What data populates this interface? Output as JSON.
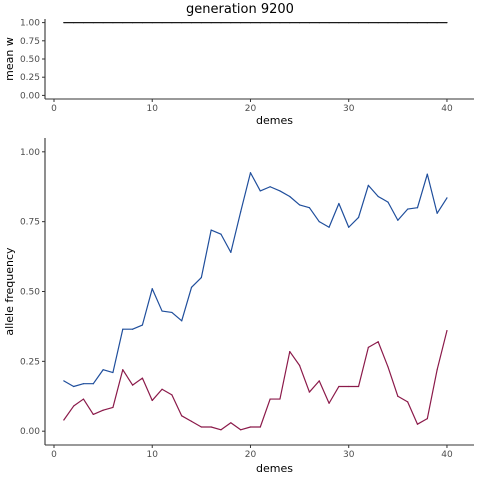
{
  "chart_data": [
    {
      "type": "line",
      "title": "generation 9200",
      "xlabel": "demes",
      "ylabel": "mean w",
      "xlim": [
        0,
        41
      ],
      "ylim": [
        0,
        1
      ],
      "x_ticks": [
        "0",
        "10",
        "20",
        "30",
        "40"
      ],
      "y_ticks": [
        "0.00",
        "0.25",
        "0.50",
        "0.75",
        "1.00"
      ],
      "grid": false,
      "series": [
        {
          "color": "#1a1a1a",
          "x": [
            1,
            2,
            3,
            4,
            5,
            6,
            7,
            8,
            9,
            10,
            11,
            12,
            13,
            14,
            15,
            16,
            17,
            18,
            19,
            20,
            21,
            22,
            23,
            24,
            25,
            26,
            27,
            28,
            29,
            30,
            31,
            32,
            33,
            34,
            35,
            36,
            37,
            38,
            39,
            40
          ],
          "values": [
            1,
            1,
            1,
            1,
            1,
            1,
            1,
            1,
            1,
            1,
            1,
            1,
            1,
            1,
            1,
            1,
            1,
            1,
            1,
            1,
            1,
            1,
            1,
            1,
            1,
            1,
            1,
            1,
            1,
            1,
            1,
            1,
            1,
            1,
            1,
            1,
            1,
            1,
            1,
            1
          ]
        }
      ]
    },
    {
      "type": "line",
      "title": "",
      "xlabel": "demes",
      "ylabel": "allele frequency",
      "xlim": [
        0,
        41
      ],
      "ylim": [
        0,
        1
      ],
      "x_ticks": [
        "0",
        "10",
        "20",
        "30",
        "40"
      ],
      "y_ticks": [
        "0.00",
        "0.25",
        "0.50",
        "0.75",
        "1.00"
      ],
      "grid": false,
      "series": [
        {
          "color": "#1f4e9c",
          "x": [
            1,
            2,
            3,
            4,
            5,
            6,
            7,
            8,
            9,
            10,
            11,
            12,
            13,
            14,
            15,
            16,
            17,
            18,
            19,
            20,
            21,
            22,
            23,
            24,
            25,
            26,
            27,
            28,
            29,
            30,
            31,
            32,
            33,
            34,
            35,
            36,
            37,
            38,
            39,
            40
          ],
          "values": [
            0.18,
            0.16,
            0.17,
            0.17,
            0.22,
            0.21,
            0.365,
            0.365,
            0.38,
            0.51,
            0.43,
            0.425,
            0.395,
            0.515,
            0.55,
            0.72,
            0.705,
            0.64,
            0.785,
            0.925,
            0.86,
            0.875,
            0.86,
            0.84,
            0.81,
            0.8,
            0.75,
            0.73,
            0.815,
            0.73,
            0.765,
            0.88,
            0.84,
            0.82,
            0.755,
            0.795,
            0.8,
            0.92,
            0.78,
            0.835
          ]
        },
        {
          "color": "#8b1a4a",
          "x": [
            1,
            2,
            3,
            4,
            5,
            6,
            7,
            8,
            9,
            10,
            11,
            12,
            13,
            14,
            15,
            16,
            17,
            18,
            19,
            20,
            21,
            22,
            23,
            24,
            25,
            26,
            27,
            28,
            29,
            30,
            31,
            32,
            33,
            34,
            35,
            36,
            37,
            38,
            39,
            40
          ],
          "values": [
            0.04,
            0.09,
            0.115,
            0.06,
            0.075,
            0.085,
            0.22,
            0.165,
            0.19,
            0.11,
            0.15,
            0.13,
            0.055,
            0.035,
            0.015,
            0.015,
            0.005,
            0.03,
            0.005,
            0.015,
            0.015,
            0.115,
            0.115,
            0.285,
            0.235,
            0.14,
            0.18,
            0.1,
            0.16,
            0.16,
            0.16,
            0.3,
            0.32,
            0.23,
            0.125,
            0.105,
            0.025,
            0.045,
            0.22,
            0.36
          ]
        }
      ]
    }
  ]
}
